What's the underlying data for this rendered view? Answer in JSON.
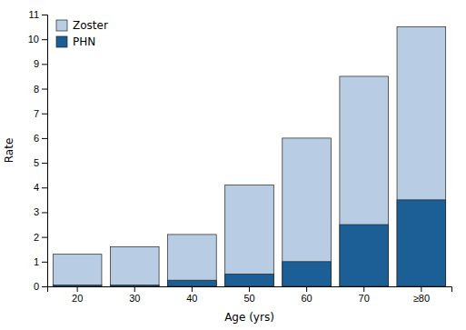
{
  "chart_data": {
    "type": "bar",
    "categories": [
      "20",
      "30",
      "40",
      "50",
      "60",
      "70",
      "≥80"
    ],
    "series": [
      {
        "name": "Zoster",
        "color": "#b8cce4",
        "values": [
          1.3,
          1.6,
          2.1,
          4.1,
          6.0,
          8.5,
          10.5
        ]
      },
      {
        "name": "PHN",
        "color": "#1c5f96",
        "values": [
          0.05,
          0.05,
          0.25,
          0.5,
          1.0,
          2.5,
          3.5
        ]
      }
    ],
    "xlabel": "Age (yrs)",
    "ylabel": "Rate",
    "ylim": [
      0,
      11
    ],
    "yticks": [
      0,
      1,
      2,
      3,
      4,
      5,
      6,
      7,
      8,
      9,
      10,
      11
    ],
    "legend": "top-left",
    "grid": false
  }
}
